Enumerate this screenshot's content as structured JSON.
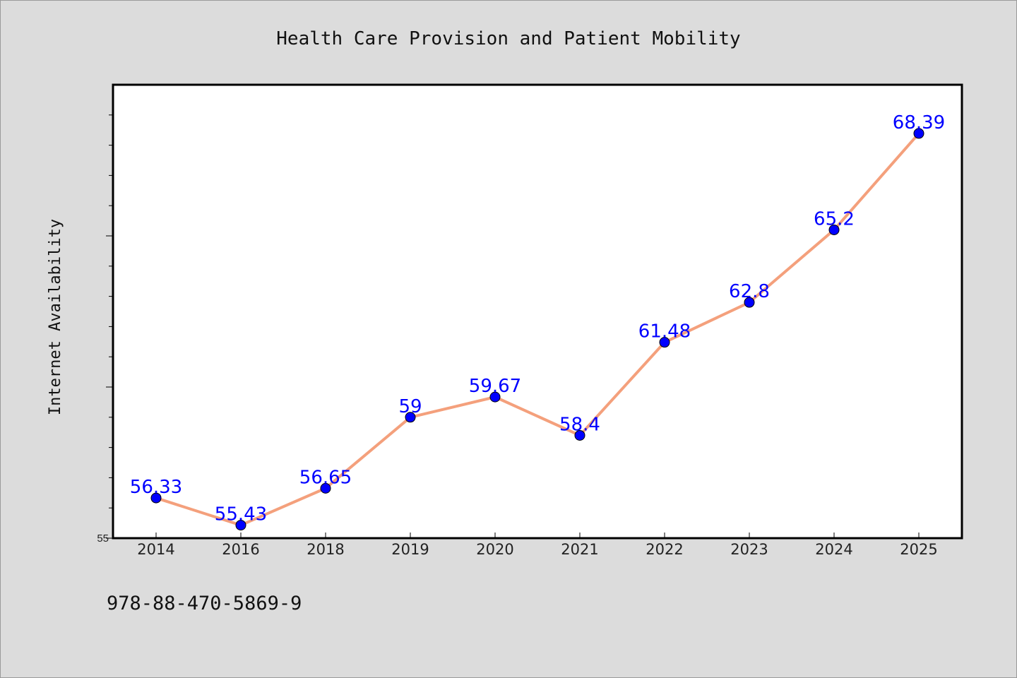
{
  "title": "Health Care Provision and Patient Mobility",
  "footer_code": "978-88-470-5869-9",
  "colors": {
    "background": "#dcdcdc",
    "plot_background": "#ffffff",
    "line": "#f4a07c",
    "marker": "#0000ff",
    "data_label": "#0000ff"
  },
  "chart_data": {
    "type": "line",
    "title": "Health Care Provision and Patient Mobility",
    "xlabel": "",
    "ylabel": "Internet Availability",
    "categories": [
      "2014",
      "2016",
      "2018",
      "2019",
      "2020",
      "2021",
      "2022",
      "2023",
      "2024",
      "2025"
    ],
    "values": [
      56.33,
      55.43,
      56.65,
      59,
      59.67,
      58.4,
      61.48,
      62.8,
      65.2,
      68.39
    ],
    "ylim": [
      55,
      70
    ],
    "y_tick_labels": [
      "55"
    ],
    "grid": false,
    "legend": "none"
  }
}
